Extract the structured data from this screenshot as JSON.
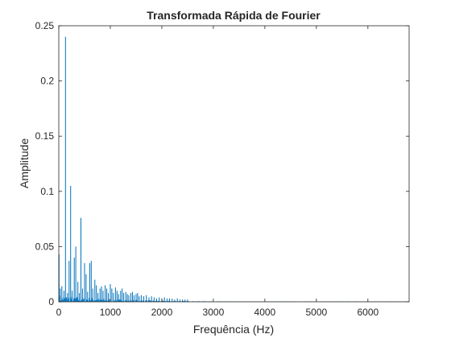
{
  "chart_data": {
    "type": "line",
    "title": "Transformada Rápida de Fourier",
    "xlabel": "Frequência (Hz)",
    "ylabel": "Amplitude",
    "xlim": [
      0,
      6800
    ],
    "ylim": [
      0,
      0.25
    ],
    "xticks": [
      0,
      1000,
      2000,
      3000,
      4000,
      5000,
      6000
    ],
    "xtick_labels": [
      "0",
      "1000",
      "2000",
      "3000",
      "4000",
      "5000",
      "6000"
    ],
    "yticks": [
      0,
      0.05,
      0.1,
      0.15,
      0.2,
      0.25
    ],
    "ytick_labels": [
      "0",
      "0.05",
      "0.1",
      "0.15",
      "0.2",
      "0.25"
    ],
    "grid": false,
    "legend": "none",
    "color": "#0072BD",
    "peaks": {
      "x": [
        5,
        30,
        60,
        100,
        130,
        170,
        200,
        230,
        260,
        300,
        330,
        370,
        400,
        430,
        460,
        500,
        530,
        560,
        600,
        630,
        660,
        700,
        730,
        760,
        800,
        830,
        860,
        900,
        930,
        960,
        1000,
        1030,
        1060,
        1100,
        1130,
        1160,
        1200,
        1230,
        1260,
        1300,
        1330,
        1360,
        1400,
        1430,
        1460,
        1500,
        1530,
        1560,
        1600,
        1650,
        1700,
        1750,
        1800,
        1850,
        1900,
        1950,
        2000,
        2050,
        2100,
        2150,
        2200,
        2250,
        2300,
        2350,
        2400,
        2450,
        2500
      ],
      "y": [
        0.043,
        0.012,
        0.014,
        0.01,
        0.24,
        0.008,
        0.037,
        0.105,
        0.01,
        0.04,
        0.05,
        0.018,
        0.008,
        0.076,
        0.012,
        0.035,
        0.025,
        0.009,
        0.035,
        0.037,
        0.012,
        0.02,
        0.015,
        0.008,
        0.012,
        0.014,
        0.01,
        0.015,
        0.012,
        0.008,
        0.016,
        0.012,
        0.008,
        0.013,
        0.01,
        0.007,
        0.01,
        0.012,
        0.008,
        0.009,
        0.007,
        0.006,
        0.008,
        0.009,
        0.006,
        0.007,
        0.008,
        0.005,
        0.006,
        0.005,
        0.006,
        0.004,
        0.005,
        0.004,
        0.003,
        0.004,
        0.003,
        0.004,
        0.003,
        0.003,
        0.003,
        0.002,
        0.003,
        0.002,
        0.002,
        0.002,
        0.002
      ]
    },
    "noise_floor_until": 6800
  }
}
